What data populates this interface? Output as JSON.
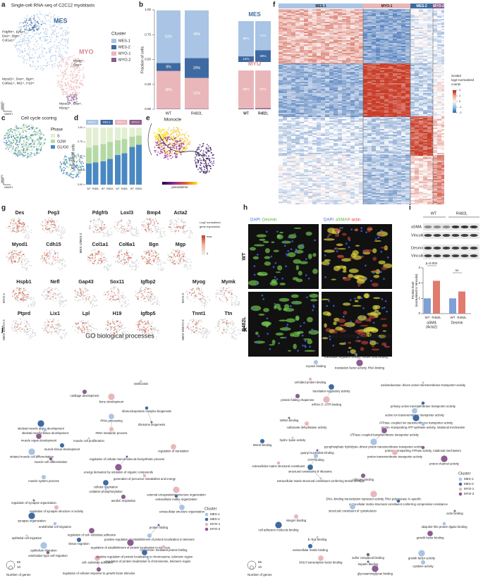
{
  "panel_labels": [
    "a",
    "b",
    "c",
    "d",
    "e",
    "f",
    "g",
    "h",
    "i",
    "j",
    "k"
  ],
  "a": {
    "title": "Single-cell RNA-seq of C2C12 myoblasts",
    "cluster_labels": [
      "MES",
      "MYO"
    ],
    "annotations": [
      [
        "Pdgfrb+, Ly6a+,",
        "Des+, Bgn+,",
        "Col1a1+"
      ],
      [
        "Myod1+, Des+, Bgn+,",
        "Col6a1+, Mt1+, H19+"
      ],
      [
        "Myog+,",
        "Des+"
      ],
      [
        "Myod1+, Des+,",
        "Myog+"
      ]
    ],
    "axes": [
      "UMAP2",
      "UMAP1"
    ],
    "legend_title": "Cluster"
  },
  "b": {
    "type": "bar",
    "y_label": "Fraction of cells",
    "categories": [
      "WT",
      "R482L"
    ],
    "ylim": [
      0,
      1
    ],
    "yticks": [
      {
        "value": 0,
        "label": "0.00"
      },
      {
        "value": 0.25,
        "label": "0.25"
      },
      {
        "value": 0.5,
        "label": "0.50"
      },
      {
        "value": 0.75,
        "label": "0.75"
      },
      {
        "value": 1,
        "label": "1.00"
      }
    ],
    "series": [
      {
        "name": "MYO-2",
        "color": "#8b5d8e",
        "values": [
          0.005,
          0.005
        ],
        "value_labels": [
          "<1%",
          "<1%"
        ]
      },
      {
        "name": "MYO-1",
        "color": "#e9b7ba",
        "values": [
          0.38,
          0.31
        ],
        "value_labels": [
          "38%",
          "31%"
        ]
      },
      {
        "name": "MES-2",
        "color": "#3f6aa1",
        "values": [
          0.08,
          0.2
        ],
        "value_labels": [
          "8%",
          "20%"
        ]
      },
      {
        "name": "MES-1",
        "color": "#a9c4e4",
        "values": [
          0.53,
          0.48
        ],
        "value_labels": [
          "53%",
          "48%"
        ]
      }
    ],
    "insets": [
      {
        "title": "MES",
        "categories": [
          "WT",
          "R482L"
        ],
        "ylim": [
          0,
          1
        ],
        "series": [
          {
            "name": "MES-2",
            "color": "#3f6aa1",
            "values": [
              0.14,
              0.29
            ],
            "value_labels": [
              "14%",
              "29%"
            ]
          },
          {
            "name": "MES-1",
            "color": "#a9c4e4",
            "values": [
              0.86,
              0.71
            ],
            "value_labels": [
              "86%",
              "71%"
            ]
          }
        ]
      },
      {
        "title": "MYO",
        "categories": [
          "WT",
          "R482L"
        ],
        "ylim": [
          0,
          1
        ],
        "series": [
          {
            "name": "MYO-2",
            "color": "#8b5d8e",
            "values": [
              0.02,
              0.03
            ],
            "value_labels": [
              "2%",
              "3%"
            ]
          },
          {
            "name": "MYO-1",
            "color": "#e9b7ba",
            "values": [
              0.98,
              0.97
            ],
            "value_labels": [
              "98%",
              "97%"
            ]
          }
        ]
      }
    ]
  },
  "c": {
    "title": "Cell cycle scoring",
    "legend_title": "Phase",
    "axes": [
      "UMAP2",
      "UMAP1"
    ]
  },
  "d": {
    "type": "bar",
    "y_label": "Fraction of cells",
    "groups": [
      "MES-1",
      "MES-2",
      "MYO-1",
      "MYO-2"
    ],
    "group_colors": [
      "#a9c4e4",
      "#3f6aa1",
      "#e9b7ba",
      "#8b5d8e"
    ],
    "categories": [
      "WT",
      "R482L",
      "WT",
      "R482L",
      "WT",
      "R482L",
      "WT",
      "R482L"
    ],
    "ylim": [
      0,
      1
    ],
    "yticks": [
      {
        "value": 0,
        "label": "0.00"
      },
      {
        "value": 0.25,
        "label": "0.25"
      },
      {
        "value": 0.5,
        "label": "0.50"
      },
      {
        "value": 0.75,
        "label": "0.75"
      },
      {
        "value": 1,
        "label": "1.00"
      }
    ],
    "series": [
      {
        "name": "G1/G0",
        "color": "#4a88c2",
        "values": [
          0.37,
          0.39,
          0.41,
          0.45,
          0.52,
          0.55,
          0.66,
          0.7
        ]
      },
      {
        "name": "G2M",
        "color": "#b5d9a5",
        "values": [
          0.28,
          0.3,
          0.3,
          0.3,
          0.26,
          0.25,
          0.18,
          0.16
        ]
      },
      {
        "name": "S",
        "color": "#e3efd2",
        "values": [
          0.35,
          0.31,
          0.29,
          0.25,
          0.22,
          0.2,
          0.16,
          0.14
        ]
      }
    ]
  },
  "e": {
    "title": "Monocle",
    "legend_title": "pseudotime"
  },
  "f": {
    "clusters": [
      "MES-1",
      "MYO-1",
      "MES-2",
      "MYO-2"
    ],
    "legend_title": [
      "Scaled",
      "log2-normalized",
      "counts"
    ],
    "legend_ticks": [
      2,
      1,
      0,
      -1,
      -2
    ]
  },
  "g": {
    "genes": [
      "Des",
      "Peg3",
      "Myod1",
      "Cdh15",
      "Pdgfrb",
      "Loxl3",
      "Bmp4",
      "Acta2",
      "Col1a1",
      "Col6a1",
      "Bgn",
      "Mgp",
      "Hspb1",
      "Nefl",
      "Gap43",
      "Sox11",
      "Igfbp2",
      "Myog",
      "Mymk",
      "Ptprd",
      "Lix1",
      "Lpl",
      "H19",
      "Igfbp5",
      "Tnnt1",
      "Ttn"
    ],
    "group_labels": [
      "MES-1/MES-2",
      "MYO-1",
      "MES-2/MYO-2",
      "MYO-2"
    ],
    "legend_title": [
      "Log2 normalized",
      "gene expression"
    ],
    "legend_max": "max",
    "legend_min": 0
  },
  "h": {
    "stains_left": [
      "DAPI",
      "Desmin"
    ],
    "stains_right": [
      "DAPI",
      "aSMA",
      "F-actin"
    ],
    "row_labels": [
      "WT",
      "R482L"
    ]
  },
  "i": {
    "columns": [
      "WT",
      "R482L"
    ],
    "blot_labels": [
      "aSMA",
      "Vinculin",
      "Desmin",
      "Vinculin"
    ],
    "chart": {
      "type": "bar",
      "y_label": [
        "Protein level",
        "(normalized to Vinculin)"
      ],
      "categories": [
        "WT",
        "R482L",
        "WT",
        "R482L"
      ],
      "groups": [
        [
          "aSMA",
          "(Acta2)"
        ],
        [
          "Desmin"
        ]
      ],
      "ylim": [
        0,
        3
      ],
      "yticks": [
        0,
        1,
        2,
        3
      ],
      "values": [
        1.0,
        2.15,
        1.0,
        1.45
      ],
      "colors": [
        "#7f9fd6",
        "#e07b6f",
        "#7f9fd6",
        "#e07b6f"
      ],
      "annotations": [
        "p=0.004",
        "ns"
      ]
    }
  },
  "j": {
    "title": "GO biological processes",
    "legend_title": "Cluster",
    "size_legend": {
      "title": "Number of genes",
      "values": [
        10,
        55
      ]
    },
    "terms": [
      "ossification",
      "cartilage development",
      "bone development",
      "ribonucleoprotein complex biogenesis",
      "rRNA processing",
      "ribosome biogenesis",
      "rRNA metabolic process",
      "skeletal muscle organ development",
      "skeletal muscle tissue development",
      "muscle organ development",
      "muscle cell proliferation",
      "muscle tissue development",
      "striated muscle cell differentiation",
      "muscle cell differentiation",
      "regulation of translation",
      "regulation of cellular macromolecule biosynthetic process",
      "muscle system process",
      "energy derivation by oxidation of organic compounds",
      "generation of precursor metabolites and energy",
      "cellular respiration",
      "oxidative phosphorylation",
      "aerobic respiration",
      "external encapsulating structure organization",
      "extracellular matrix organization",
      "extracellular structure organization",
      "regulation of synapse organization",
      "regulation of synapse structure or activity",
      "synapse organization",
      "endothelial cell migration",
      "regulation of cell−substrate adhesion",
      "epithelial cell migration",
      "tissue migration",
      "epithelium migration",
      "ameboidal−type cell migration",
      "cell−substrate adhesion",
      "protein folding",
      "positive regulation of establishment of protein localization to telomere",
      "regulation of establishment of protein localization to telomere",
      "chaperone−mediated protein folding",
      "positive regulation of protein localization to chromosome, telomeric region",
      "regulation of protein localization to chromosome, telomeric region",
      "regulation of cellular response to growth factor stimulus"
    ]
  },
  "k": {
    "title": "GO molecular function",
    "legend_title": "Cluster",
    "size_legend": {
      "title": "Number of genes",
      "values": [
        10,
        55
      ]
    },
    "terms": [
      "translation regulator activity, nucleic acid binding",
      "myosin binding",
      "translation factor activity, RNA binding",
      "unfolded protein binding",
      "translation regulatory activity",
      "oxidoreductase−driven active transmembrane transporter activity",
      "protein folding chaperone",
      "mRNA 3'−UTR binding",
      "primary active transmembrane transporter activity",
      "active ion transmembrane transporter activity",
      "mRNA binding",
      "carbonate dehydratase activity",
      "ATPase−coupled ion transmembrane transporter activity",
      "proton−transporting ATP synthase activity, rotational mechanism",
      "ATPase−coupled transmembrane transporter activity",
      "hydro−lyase activity",
      "SMAD binding",
      "pyrophosphate hydrolysis−driven proton transmembrane transporter activity",
      "proton−transporting ATPase activity, rotational mechanism",
      "proton transmembrane transporter activity",
      "guanyl nucleotide binding",
      "GTP binding",
      "proton channel activity",
      "extracellular matrix structural constituent",
      "structural constituent of ribosome",
      "extracellular matrix structural constituent conferring tensile strength",
      "collagen binding",
      "DNA−binding transcription repressor activity, RNA polymerase II−specific",
      "extracellular matrix structural constituent conferring compression resistance",
      "structural constituent of cytoskeleton",
      "actin binding",
      "integrin binding",
      "cell adhesion molecule binding",
      "ubiquitin−like protein ligase binding",
      "growth factor binding",
      "E−box binding",
      "extracellular matrix binding",
      "growth factor activity",
      "sulfur compound binding",
      "bHLH transcription factor binding",
      "heparin binding",
      "cytokine activity",
      "glycosaminoglycan binding"
    ]
  }
}
